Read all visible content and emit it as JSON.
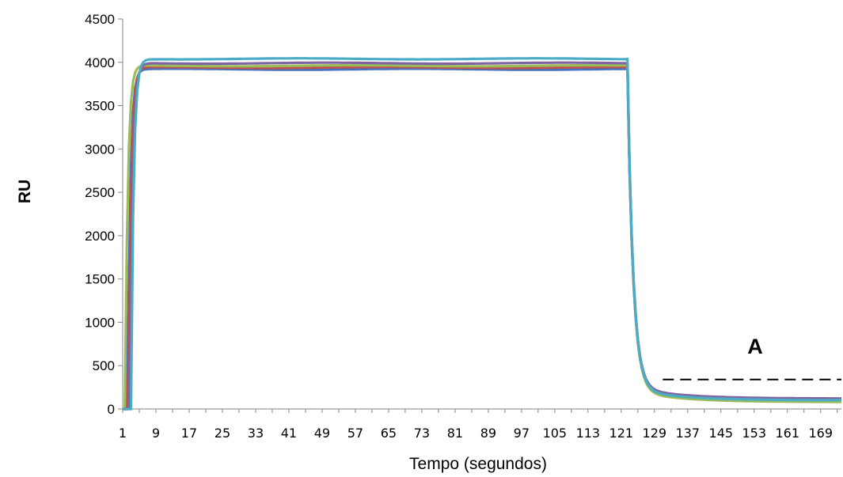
{
  "chart_data": {
    "type": "line",
    "title": "",
    "xlabel": "Tempo (segundos)",
    "ylabel": "RU",
    "ylim": [
      0,
      4500
    ],
    "yticks": [
      0,
      500,
      1000,
      1500,
      2000,
      2500,
      3000,
      3500,
      4000,
      4500
    ],
    "xlim": [
      1,
      174
    ],
    "xtick_labels": [
      "1",
      "9",
      "17",
      "25",
      "33",
      "41",
      "49",
      "57",
      "65",
      "73",
      "81",
      "89",
      "97",
      "105",
      "113",
      "121",
      "129",
      "137",
      "145",
      "153",
      "161",
      "169"
    ],
    "grid": false,
    "legend": "none",
    "annotation": {
      "text": "A",
      "line_value": 340,
      "line_x_start": 131,
      "line_x_end": 174,
      "style": "dashed"
    },
    "series": [
      {
        "color": "#4472c4",
        "plateau": 3920,
        "baseline": 90
      },
      {
        "color": "#c0504d",
        "plateau": 3940,
        "baseline": 110
      },
      {
        "color": "#9bbb59",
        "plateau": 3960,
        "baseline": 80
      },
      {
        "color": "#8064a2",
        "plateau": 3990,
        "baseline": 120
      },
      {
        "color": "#4bacc6",
        "plateau": 4040,
        "baseline": 100
      }
    ]
  }
}
